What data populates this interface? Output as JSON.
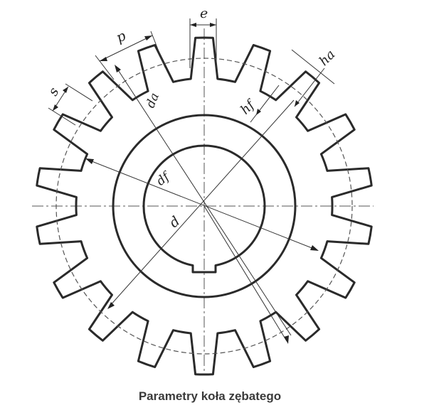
{
  "figure": {
    "labels": {
      "e": "e",
      "p": "p",
      "s": "s",
      "da": "da",
      "df": "df",
      "d": "d",
      "hf": "hf",
      "ha": "ha"
    },
    "teeth": 18
  },
  "caption": "Parametry koła zębatego"
}
